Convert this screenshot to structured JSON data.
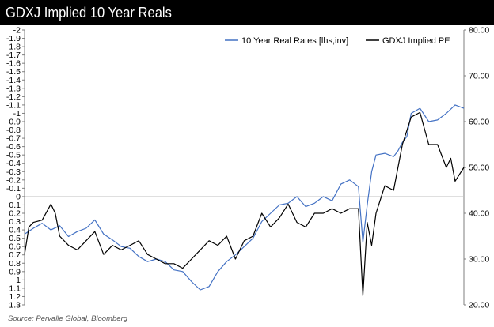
{
  "title": "GDXJ Implied 10 Year Reals",
  "source": "Source: Pervalle Global, Bloomberg",
  "colors": {
    "real_rates": "#4472C4",
    "gdxj_pe": "#000000"
  },
  "chart_data": {
    "type": "line",
    "legend_position": "top-right",
    "grid": false,
    "left_axis": {
      "label": "",
      "inverted": true,
      "ylim": [
        -2,
        1.3
      ],
      "ticks": [
        "-2",
        "-1.9",
        "-1.8",
        "-1.7",
        "-1.6",
        "-1.5",
        "-1.4",
        "-1.3",
        "-1.2",
        "-1.1",
        "-1",
        "-0.9",
        "-0.8",
        "-0.7",
        "-0.6",
        "-0.5",
        "-0.4",
        "-0.3",
        "-0.2",
        "-0.1",
        "0",
        "0.1",
        "0.2",
        "0.3",
        "0.4",
        "0.5",
        "0.6",
        "0.7",
        "0.8",
        "0.9",
        "1",
        "1.1",
        "1.2",
        "1.3"
      ]
    },
    "right_axis": {
      "label": "",
      "ylim": [
        20,
        80
      ],
      "ticks": [
        "20.00",
        "30.00",
        "40.00",
        "50.00",
        "60.00",
        "70.00",
        "80.00"
      ]
    },
    "x_index_range": [
      0,
      100
    ],
    "series": [
      {
        "name": "10 Year Real Rates [lhs,inv]",
        "axis": "left",
        "x": [
          0,
          2,
          4,
          6,
          8,
          10,
          12,
          14,
          16,
          18,
          20,
          22,
          24,
          26,
          28,
          30,
          32,
          34,
          36,
          38,
          40,
          42,
          44,
          46,
          48,
          50,
          52,
          54,
          56,
          58,
          60,
          62,
          64,
          66,
          68,
          70,
          72,
          74,
          76,
          77,
          78,
          79,
          80,
          82,
          84,
          85,
          86,
          87,
          88,
          90,
          92,
          94,
          96,
          98,
          100
        ],
        "values": [
          0.45,
          0.38,
          0.32,
          0.4,
          0.35,
          0.48,
          0.42,
          0.38,
          0.28,
          0.45,
          0.52,
          0.6,
          0.62,
          0.72,
          0.78,
          0.75,
          0.78,
          0.88,
          0.9,
          1.02,
          1.12,
          1.08,
          0.9,
          0.78,
          0.7,
          0.6,
          0.5,
          0.3,
          0.2,
          0.1,
          0.08,
          0.0,
          0.12,
          0.08,
          0.0,
          0.05,
          -0.15,
          -0.2,
          -0.12,
          0.55,
          0.1,
          -0.3,
          -0.5,
          -0.52,
          -0.48,
          -0.55,
          -0.65,
          -0.72,
          -1.0,
          -1.06,
          -0.9,
          -0.92,
          -1.0,
          -1.1,
          -1.06
        ]
      },
      {
        "name": "GDXJ Implied PE",
        "axis": "right",
        "x": [
          0,
          1,
          2,
          4,
          6,
          7,
          8,
          10,
          12,
          14,
          16,
          18,
          20,
          22,
          24,
          26,
          28,
          30,
          32,
          34,
          36,
          38,
          40,
          42,
          44,
          46,
          48,
          50,
          52,
          54,
          56,
          58,
          60,
          62,
          64,
          66,
          68,
          70,
          72,
          74,
          76,
          77,
          78,
          79,
          80,
          82,
          84,
          86,
          88,
          90,
          92,
          94,
          96,
          97,
          98,
          100
        ],
        "values": [
          31,
          37,
          38,
          38.5,
          42,
          40,
          35,
          33,
          32,
          34,
          36,
          31,
          33,
          32,
          33,
          34,
          31,
          30,
          29,
          29,
          28,
          30,
          32,
          34,
          33,
          35,
          30,
          34,
          35,
          40,
          37,
          39,
          42,
          38,
          37,
          40,
          40,
          41,
          40,
          41,
          41,
          22,
          38,
          33,
          40,
          46,
          45,
          55,
          61,
          62,
          55,
          55,
          50,
          52,
          47,
          50
        ]
      }
    ]
  }
}
